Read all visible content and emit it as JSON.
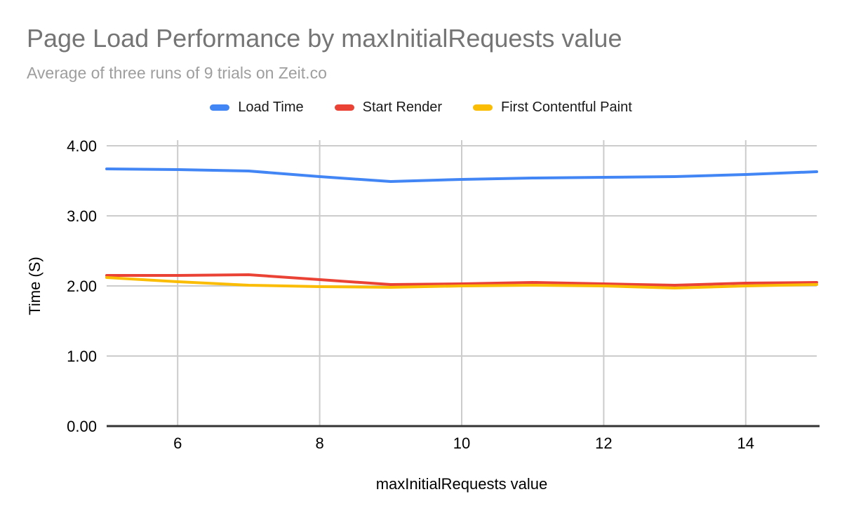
{
  "chart_data": {
    "type": "line",
    "title": "Page Load Performance by maxInitialRequests value",
    "subtitle": "Average of three runs of 9 trials on Zeit.co",
    "xlabel": "maxInitialRequests value",
    "ylabel": "Time (S)",
    "x": [
      5,
      6,
      7,
      8,
      9,
      10,
      11,
      12,
      13,
      14,
      15
    ],
    "series": [
      {
        "name": "Load Time",
        "color": "#4285F4",
        "values": [
          3.67,
          3.66,
          3.64,
          3.56,
          3.49,
          3.52,
          3.54,
          3.55,
          3.56,
          3.59,
          3.63
        ]
      },
      {
        "name": "Start Render",
        "color": "#EA4335",
        "values": [
          2.15,
          2.15,
          2.16,
          2.09,
          2.02,
          2.03,
          2.05,
          2.03,
          2.01,
          2.04,
          2.05
        ]
      },
      {
        "name": "First Contentful Paint",
        "color": "#FBBC04",
        "values": [
          2.12,
          2.06,
          2.01,
          1.99,
          1.98,
          2.0,
          2.01,
          2.0,
          1.97,
          2.0,
          2.02
        ]
      }
    ],
    "xlim": [
      5,
      15
    ],
    "ylim": [
      0,
      4
    ],
    "x_ticks": [
      "6",
      "8",
      "10",
      "12",
      "14"
    ],
    "y_ticks": [
      "0.00",
      "1.00",
      "2.00",
      "3.00",
      "4.00"
    ],
    "grid": true,
    "legend_position": "top",
    "colors": {
      "gridline": "#cccccc",
      "baseline": "#333333",
      "tick_text": "#000000",
      "title_text": "#757575",
      "subtitle_text": "#9e9e9e"
    }
  }
}
